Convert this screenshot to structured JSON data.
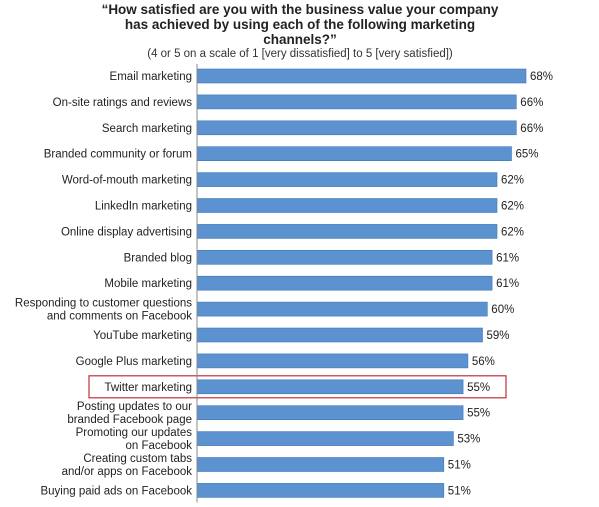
{
  "chart_data": {
    "type": "bar",
    "orientation": "horizontal",
    "title": "“How satisfied are you with the business value your company has achieved by using each of the following marketing channels?”",
    "subtitle": "(4 or 5 on a scale of 1 [very dissatisfied] to 5 [very satisfied])",
    "categories": [
      "Email marketing",
      "On-site ratings and reviews",
      "Search marketing",
      "Branded community or forum",
      "Word-of-mouth marketing",
      "LinkedIn marketing",
      "Online display advertising",
      "Branded blog",
      "Mobile marketing",
      "Responding to customer questions and comments on Facebook",
      "YouTube marketing",
      "Google Plus marketing",
      "Twitter marketing",
      "Posting updates to our branded Facebook page",
      "Promoting our updates on Facebook",
      "Creating custom tabs and/or apps on Facebook",
      "Buying paid ads on Facebook"
    ],
    "category_lines": [
      [
        "Email marketing"
      ],
      [
        "On-site ratings and reviews"
      ],
      [
        "Search marketing"
      ],
      [
        "Branded community or forum"
      ],
      [
        "Word-of-mouth marketing"
      ],
      [
        "LinkedIn marketing"
      ],
      [
        "Online display advertising"
      ],
      [
        "Branded blog"
      ],
      [
        "Mobile marketing"
      ],
      [
        "Responding to customer questions",
        "and comments on Facebook"
      ],
      [
        "YouTube marketing"
      ],
      [
        "Google Plus marketing"
      ],
      [
        "Twitter marketing"
      ],
      [
        "Posting updates to our",
        "branded Facebook page"
      ],
      [
        "Promoting our updates",
        "on Facebook"
      ],
      [
        "Creating custom tabs",
        "and/or apps on Facebook"
      ],
      [
        "Buying paid ads on Facebook"
      ]
    ],
    "values": [
      68,
      66,
      66,
      65,
      62,
      62,
      62,
      61,
      61,
      60,
      59,
      56,
      55,
      55,
      53,
      51,
      51
    ],
    "value_labels": [
      "68%",
      "66%",
      "66%",
      "65%",
      "62%",
      "62%",
      "62%",
      "61%",
      "61%",
      "60%",
      "59%",
      "56%",
      "55%",
      "55%",
      "53%",
      "51%",
      "51%"
    ],
    "xlim": [
      0,
      68
    ],
    "highlighted_category": "Twitter marketing",
    "grid": false,
    "legend": "none",
    "colors": {
      "bar": "#5b92cf",
      "bar_edge": "#3f78b8",
      "highlight_box": "#c0303a",
      "text": "#222222"
    }
  }
}
